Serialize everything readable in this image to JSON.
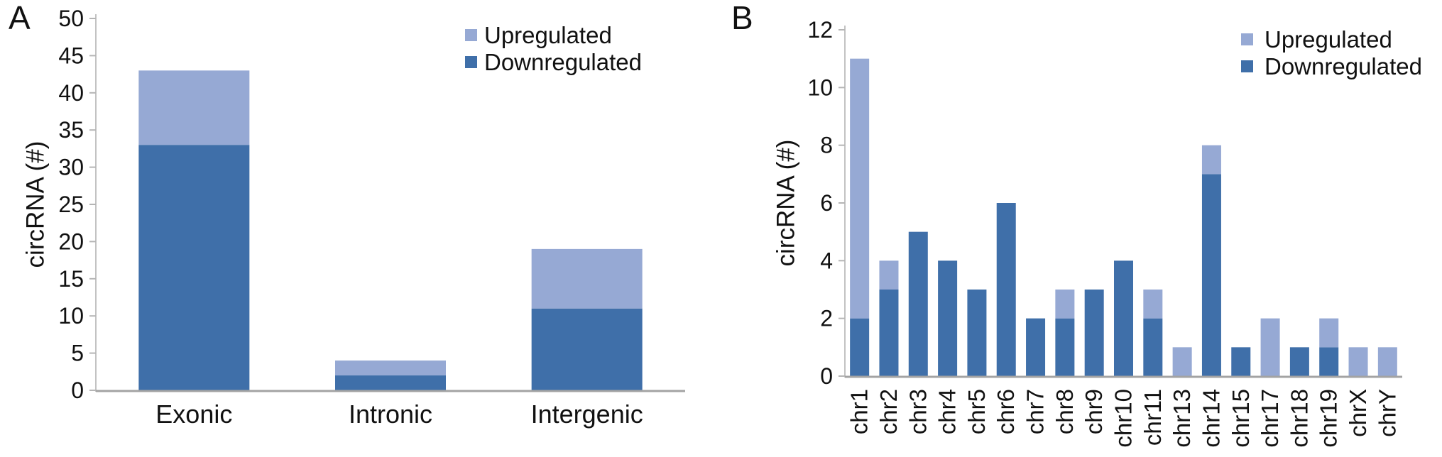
{
  "figure": {
    "panel_a_label": "A",
    "panel_b_label": "B"
  },
  "legend": {
    "upregulated": "Upregulated",
    "downregulated": "Downregulated"
  },
  "colors": {
    "upregulated": "#96a9d4",
    "downregulated": "#3f6fa9",
    "axis_line": "#c3c3c3",
    "tick_mark": "#b5b5b5",
    "baseline": "#a3a3a3",
    "text": "#111111"
  },
  "chart_data": [
    {
      "id": "A",
      "type": "bar",
      "stacked": true,
      "title": "",
      "xlabel": "",
      "ylabel": "circRNA (#)",
      "ylim": [
        0,
        50
      ],
      "ytick_step": 5,
      "grid": false,
      "legend_position": "top-right",
      "categories": [
        "Exonic",
        "Intronic",
        "Intergenic"
      ],
      "series": [
        {
          "name": "Downregulated",
          "values": [
            33,
            2,
            11
          ]
        },
        {
          "name": "Upregulated",
          "values": [
            10,
            2,
            8
          ]
        }
      ],
      "totals": [
        43,
        4,
        19
      ]
    },
    {
      "id": "B",
      "type": "bar",
      "stacked": true,
      "title": "",
      "xlabel": "",
      "ylabel": "circRNA (#)",
      "ylim": [
        0,
        12
      ],
      "ytick_step": 2,
      "grid": false,
      "legend_position": "top-right",
      "categories": [
        "chr1",
        "chr2",
        "chr3",
        "chr4",
        "chr5",
        "chr6",
        "chr7",
        "chr8",
        "chr9",
        "chr10",
        "chr11",
        "chr13",
        "chr14",
        "chr15",
        "chr17",
        "chr18",
        "chr19",
        "chrX",
        "chrY"
      ],
      "series": [
        {
          "name": "Downregulated",
          "values": [
            2,
            3,
            5,
            4,
            3,
            6,
            2,
            2,
            3,
            4,
            2,
            0,
            7,
            1,
            0,
            1,
            1,
            0,
            0
          ]
        },
        {
          "name": "Upregulated",
          "values": [
            9,
            1,
            0,
            0,
            0,
            0,
            0,
            1,
            0,
            0,
            1,
            1,
            1,
            0,
            2,
            0,
            1,
            1,
            1
          ]
        }
      ],
      "totals": [
        11,
        4,
        5,
        4,
        3,
        6,
        2,
        3,
        3,
        4,
        3,
        1,
        8,
        1,
        2,
        1,
        2,
        1,
        1
      ]
    }
  ]
}
